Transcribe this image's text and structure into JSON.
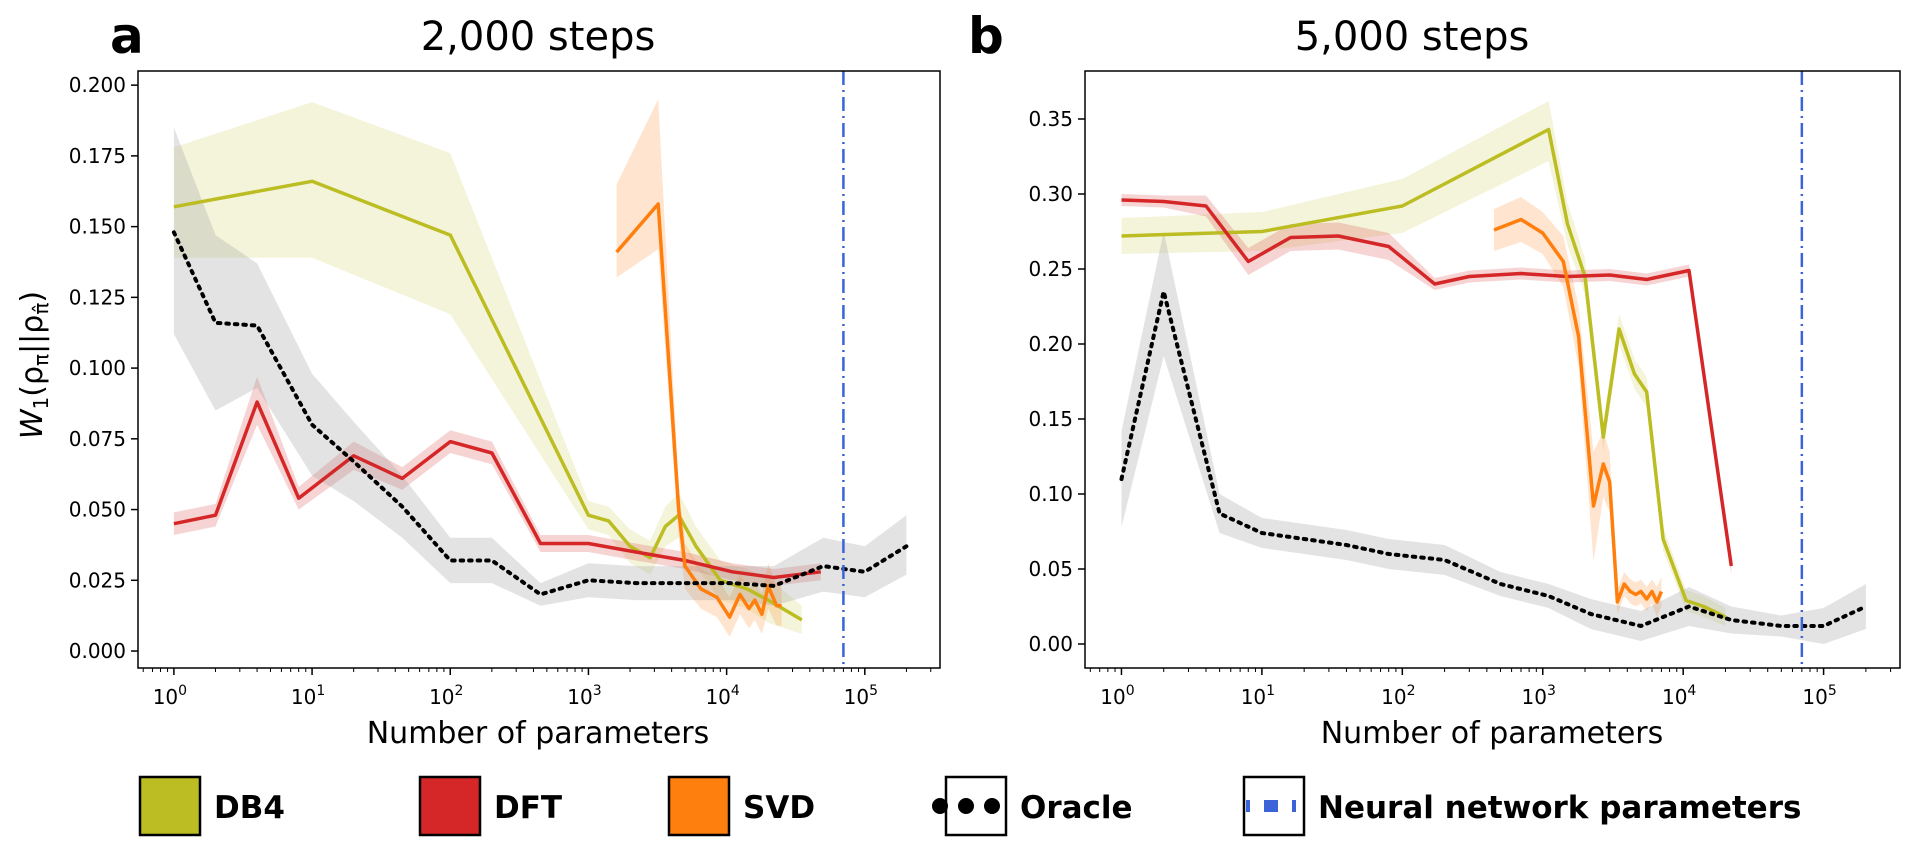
{
  "legend": [
    {
      "label": "DB4",
      "color": "#bcbd22",
      "style": "solid"
    },
    {
      "label": "DFT",
      "color": "#d62728",
      "style": "solid"
    },
    {
      "label": "SVD",
      "color": "#ff7f0e",
      "style": "solid"
    },
    {
      "label": "Oracle",
      "color": "#000000",
      "style": "dotted"
    },
    {
      "label": "Neural network parameters",
      "color": "#3c64d8",
      "style": "dashdot"
    }
  ],
  "chart_data": [
    {
      "type": "line",
      "panel_letter": "a",
      "title": "2,000 steps",
      "xlabel": "Number of parameters",
      "ylabel": "W",
      "ylabel_parts": {
        "main": "W",
        "sub": "1",
        "arg": "(ρ",
        "arg_sub1": "π",
        "mid": "||ρ",
        "arg_sub2": "π̂",
        "end": ")"
      },
      "xscale": "log",
      "xlim": [
        0.55,
        350000
      ],
      "ylim": [
        -0.006,
        0.205
      ],
      "yticks": [
        0.0,
        0.025,
        0.05,
        0.075,
        0.1,
        0.125,
        0.15,
        0.175,
        0.2
      ],
      "ytick_labels": [
        "0.000",
        "0.025",
        "0.050",
        "0.075",
        "0.100",
        "0.125",
        "0.150",
        "0.175",
        "0.200"
      ],
      "xticks": [
        1,
        10,
        100,
        1000,
        10000,
        100000
      ],
      "xtick_labels": [
        {
          "base": "10",
          "exp": "0"
        },
        {
          "base": "10",
          "exp": "1"
        },
        {
          "base": "10",
          "exp": "2"
        },
        {
          "base": "10",
          "exp": "3"
        },
        {
          "base": "10",
          "exp": "4"
        },
        {
          "base": "10",
          "exp": "5"
        }
      ],
      "vline": {
        "x": 70000,
        "color": "#3c64d8",
        "style": "dashdot"
      },
      "series": [
        {
          "key": "DB4",
          "color": "#bcbd22",
          "style": "solid",
          "x": [
            1,
            10,
            100,
            1000,
            1400,
            2000,
            2800,
            3600,
            4500,
            6000,
            9000,
            14000,
            20000,
            35000
          ],
          "y": [
            0.157,
            0.166,
            0.147,
            0.048,
            0.046,
            0.037,
            0.033,
            0.044,
            0.048,
            0.037,
            0.025,
            0.022,
            0.018,
            0.011
          ],
          "lo": [
            0.139,
            0.139,
            0.119,
            0.043,
            0.041,
            0.031,
            0.027,
            0.037,
            0.04,
            0.03,
            0.018,
            0.015,
            0.01,
            0.006
          ],
          "hi": [
            0.178,
            0.194,
            0.176,
            0.053,
            0.051,
            0.043,
            0.039,
            0.051,
            0.056,
            0.044,
            0.032,
            0.029,
            0.026,
            0.016
          ]
        },
        {
          "key": "DFT",
          "color": "#d62728",
          "style": "solid",
          "x": [
            1,
            2,
            4,
            8,
            20,
            45,
            100,
            200,
            450,
            1000,
            2200,
            5000,
            11000,
            22000,
            48000
          ],
          "y": [
            0.045,
            0.048,
            0.088,
            0.054,
            0.069,
            0.061,
            0.074,
            0.07,
            0.038,
            0.038,
            0.035,
            0.032,
            0.028,
            0.026,
            0.028
          ],
          "lo": [
            0.041,
            0.044,
            0.08,
            0.05,
            0.064,
            0.057,
            0.07,
            0.066,
            0.035,
            0.035,
            0.032,
            0.029,
            0.025,
            0.023,
            0.025
          ],
          "hi": [
            0.049,
            0.052,
            0.097,
            0.058,
            0.074,
            0.065,
            0.078,
            0.074,
            0.041,
            0.041,
            0.038,
            0.035,
            0.031,
            0.029,
            0.031
          ]
        },
        {
          "key": "SVD",
          "color": "#ff7f0e",
          "style": "solid",
          "x": [
            1600,
            3200,
            4500,
            5000,
            6500,
            8500,
            10500,
            12500,
            14500,
            16000,
            18000,
            20000,
            23000,
            25000
          ],
          "y": [
            0.141,
            0.158,
            0.05,
            0.03,
            0.022,
            0.019,
            0.012,
            0.02,
            0.015,
            0.018,
            0.013,
            0.023,
            0.016,
            0.016
          ],
          "lo": [
            0.132,
            0.142,
            0.04,
            0.022,
            0.015,
            0.012,
            0.005,
            0.013,
            0.008,
            0.011,
            0.006,
            0.015,
            0.009,
            0.009
          ],
          "hi": [
            0.165,
            0.195,
            0.058,
            0.038,
            0.029,
            0.026,
            0.019,
            0.027,
            0.022,
            0.025,
            0.02,
            0.031,
            0.023,
            0.023
          ]
        },
        {
          "key": "Oracle",
          "color": "#000000",
          "style": "dotted",
          "x": [
            1,
            2,
            4,
            10,
            20,
            45,
            100,
            200,
            450,
            1000,
            2200,
            5000,
            11000,
            22000,
            50000,
            100000,
            200000
          ],
          "y": [
            0.148,
            0.116,
            0.115,
            0.08,
            0.067,
            0.051,
            0.032,
            0.032,
            0.02,
            0.025,
            0.024,
            0.024,
            0.024,
            0.023,
            0.03,
            0.028,
            0.037
          ],
          "lo": [
            0.112,
            0.085,
            0.093,
            0.062,
            0.053,
            0.04,
            0.024,
            0.024,
            0.016,
            0.019,
            0.018,
            0.018,
            0.018,
            0.016,
            0.021,
            0.019,
            0.027
          ],
          "hi": [
            0.185,
            0.147,
            0.137,
            0.098,
            0.081,
            0.062,
            0.04,
            0.04,
            0.024,
            0.031,
            0.03,
            0.03,
            0.03,
            0.03,
            0.04,
            0.037,
            0.048
          ]
        }
      ]
    },
    {
      "type": "line",
      "panel_letter": "b",
      "title": "5,000 steps",
      "xlabel": "Number of parameters",
      "ylabel": "",
      "xscale": "log",
      "xlim": [
        0.55,
        350000
      ],
      "ylim": [
        -0.016,
        0.382
      ],
      "yticks": [
        0.0,
        0.05,
        0.1,
        0.15,
        0.2,
        0.25,
        0.3,
        0.35
      ],
      "ytick_labels": [
        "0.00",
        "0.05",
        "0.10",
        "0.15",
        "0.20",
        "0.25",
        "0.30",
        "0.35"
      ],
      "xticks": [
        1,
        10,
        100,
        1000,
        10000,
        100000
      ],
      "xtick_labels": [
        {
          "base": "10",
          "exp": "0"
        },
        {
          "base": "10",
          "exp": "1"
        },
        {
          "base": "10",
          "exp": "2"
        },
        {
          "base": "10",
          "exp": "3"
        },
        {
          "base": "10",
          "exp": "4"
        },
        {
          "base": "10",
          "exp": "5"
        }
      ],
      "vline": {
        "x": 70000,
        "color": "#3c64d8",
        "style": "dashdot"
      },
      "series": [
        {
          "key": "DB4",
          "color": "#bcbd22",
          "style": "solid",
          "x": [
            1,
            10,
            100,
            1100,
            1500,
            2000,
            2700,
            3500,
            4500,
            5500,
            7200,
            10500,
            14000,
            20000
          ],
          "y": [
            0.272,
            0.275,
            0.292,
            0.343,
            0.28,
            0.245,
            0.138,
            0.21,
            0.18,
            0.168,
            0.07,
            0.029,
            0.025,
            0.018
          ],
          "lo": [
            0.26,
            0.262,
            0.274,
            0.322,
            0.266,
            0.233,
            0.128,
            0.2,
            0.17,
            0.158,
            0.062,
            0.022,
            0.018,
            0.012
          ],
          "hi": [
            0.284,
            0.288,
            0.31,
            0.362,
            0.294,
            0.257,
            0.148,
            0.22,
            0.19,
            0.178,
            0.078,
            0.036,
            0.032,
            0.024
          ]
        },
        {
          "key": "DFT",
          "color": "#d62728",
          "style": "solid",
          "x": [
            1,
            2,
            4,
            8,
            16,
            35,
            80,
            170,
            300,
            700,
            1500,
            3000,
            5500,
            11000,
            22000
          ],
          "y": [
            0.296,
            0.295,
            0.292,
            0.255,
            0.271,
            0.272,
            0.265,
            0.24,
            0.245,
            0.247,
            0.245,
            0.246,
            0.243,
            0.249,
            0.052
          ],
          "lo": [
            0.292,
            0.291,
            0.285,
            0.246,
            0.262,
            0.263,
            0.256,
            0.236,
            0.241,
            0.243,
            0.241,
            0.242,
            0.239,
            0.245,
            0.046
          ],
          "hi": [
            0.3,
            0.299,
            0.299,
            0.264,
            0.28,
            0.281,
            0.274,
            0.244,
            0.249,
            0.251,
            0.249,
            0.25,
            0.247,
            0.253,
            0.058
          ]
        },
        {
          "key": "SVD",
          "color": "#ff7f0e",
          "style": "solid",
          "x": [
            450,
            700,
            1000,
            1400,
            1800,
            2300,
            2700,
            3000,
            3400,
            3800,
            4200,
            4600,
            5000,
            5500,
            6000,
            6500,
            7000
          ],
          "y": [
            0.276,
            0.283,
            0.274,
            0.255,
            0.205,
            0.092,
            0.12,
            0.108,
            0.028,
            0.04,
            0.035,
            0.033,
            0.035,
            0.03,
            0.035,
            0.028,
            0.035
          ],
          "lo": [
            0.262,
            0.268,
            0.26,
            0.238,
            0.185,
            0.055,
            0.098,
            0.088,
            0.02,
            0.032,
            0.027,
            0.025,
            0.027,
            0.022,
            0.027,
            0.018,
            0.025
          ],
          "hi": [
            0.29,
            0.298,
            0.288,
            0.272,
            0.225,
            0.128,
            0.142,
            0.128,
            0.036,
            0.048,
            0.043,
            0.041,
            0.043,
            0.038,
            0.043,
            0.038,
            0.045
          ]
        },
        {
          "key": "Oracle",
          "color": "#000000",
          "style": "dotted",
          "x": [
            1,
            2,
            5,
            10,
            20,
            40,
            80,
            200,
            500,
            1100,
            2200,
            5000,
            11000,
            22000,
            50000,
            100000,
            200000
          ],
          "y": [
            0.11,
            0.235,
            0.087,
            0.074,
            0.07,
            0.066,
            0.06,
            0.056,
            0.04,
            0.032,
            0.02,
            0.012,
            0.025,
            0.016,
            0.012,
            0.012,
            0.025
          ],
          "lo": [
            0.078,
            0.192,
            0.074,
            0.064,
            0.06,
            0.056,
            0.05,
            0.046,
            0.032,
            0.024,
            0.01,
            0.002,
            0.012,
            0.007,
            0.005,
            0.0,
            0.01
          ],
          "hi": [
            0.142,
            0.275,
            0.1,
            0.084,
            0.08,
            0.076,
            0.07,
            0.066,
            0.048,
            0.04,
            0.03,
            0.022,
            0.038,
            0.025,
            0.019,
            0.024,
            0.04
          ]
        }
      ]
    }
  ]
}
